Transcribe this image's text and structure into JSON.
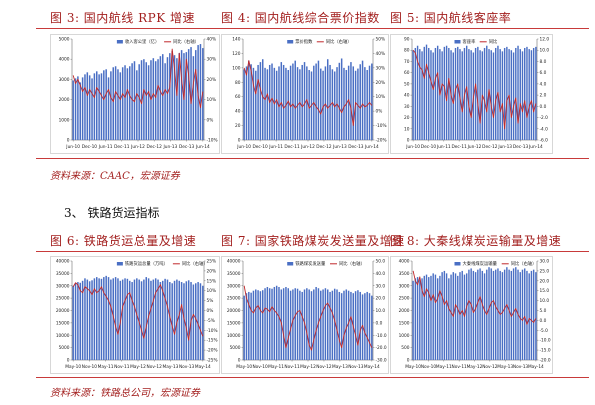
{
  "section1": {
    "fig_titles": [
      "图 3:  国内航线 RPK 增速",
      "图 4:  国内航线综合票价指数",
      "图 5:  国内航线客座率"
    ],
    "source": "资料来源：CAAC，宏源证券"
  },
  "section2": {
    "heading": "3、  铁路货运指标",
    "fig_titles": [
      "图 6:  铁路货运总量及增速",
      "图 7:  国家铁路煤炭发送量及增速",
      "图 8:  大秦线煤炭运输量及增速"
    ],
    "source": "资料来源：铁路总公司，宏源证券"
  },
  "colors": {
    "bar": "#4a6fc4",
    "line": "#c0282a",
    "title": "#a3201f",
    "rule": "#c83a3a"
  },
  "chart_data": [
    {
      "id": "fig3",
      "type": "bar",
      "x_tick_labels": [
        "Jun-10",
        "Dec-10",
        "Jun-11",
        "Dec-11",
        "Jun-12",
        "Dec-12",
        "Jun-13",
        "Dec-13",
        "Jun-14"
      ],
      "y_left": {
        "ylim": [
          0,
          5000
        ],
        "ticks": [
          "0",
          "1000",
          "2000",
          "3000",
          "4000",
          "5000"
        ]
      },
      "y_right": {
        "ylim": [
          -10,
          40
        ],
        "ticks": [
          "-10%",
          "0%",
          "10%",
          "20%",
          "30%",
          "40%"
        ]
      },
      "series": [
        {
          "name": "收入客公里（亿）",
          "kind": "bar",
          "axis": "left",
          "values": [
            2950,
            3050,
            3150,
            2850,
            3100,
            3250,
            3350,
            3200,
            3050,
            3300,
            3400,
            3250,
            3300,
            3450,
            3500,
            3100,
            3400,
            3600,
            3650,
            3500,
            3350,
            3600,
            3700,
            3550,
            3650,
            3800,
            3900,
            3450,
            3750,
            3950,
            4000,
            3850,
            3700,
            3950,
            4050,
            3900,
            4000,
            4150,
            4250,
            3800,
            4100,
            4300,
            4400,
            4200,
            4050,
            4300,
            4450,
            4300,
            4350,
            4500,
            4600,
            4150,
            4450,
            4700,
            4750,
            4550
          ]
        },
        {
          "name": "同比（右轴）",
          "kind": "line",
          "axis": "right",
          "values": [
            22,
            18,
            20,
            17,
            14,
            16,
            12,
            15,
            13,
            11,
            16,
            14,
            12,
            10,
            13,
            15,
            11,
            9,
            14,
            12,
            10,
            13,
            11,
            15,
            12,
            10,
            9,
            13,
            11,
            8,
            15,
            12,
            14,
            10,
            13,
            11,
            17,
            14,
            12,
            15,
            13,
            16,
            35,
            25,
            12,
            33,
            20,
            10,
            30,
            22,
            8,
            18,
            25,
            12,
            6,
            14
          ]
        }
      ]
    },
    {
      "id": "fig4",
      "type": "bar",
      "x_tick_labels": [
        "Jun-10",
        "Dec-10",
        "Jun-11",
        "Dec-11",
        "Jun-12",
        "Dec-12",
        "Jun-13",
        "Dec-13",
        "Jun-14"
      ],
      "y_left": {
        "ylim": [
          0,
          140
        ],
        "ticks": [
          "0",
          "20",
          "40",
          "60",
          "80",
          "100",
          "120",
          "140"
        ]
      },
      "y_right": {
        "ylim": [
          -20,
          50
        ],
        "ticks": [
          "-20%",
          "-10%",
          "0%",
          "10%",
          "20%",
          "30%",
          "40%",
          "50%"
        ]
      },
      "series": [
        {
          "name": "票价指数",
          "kind": "bar",
          "axis": "left",
          "values": [
            98,
            102,
            110,
            105,
            100,
            96,
            104,
            108,
            112,
            100,
            98,
            104,
            106,
            100,
            96,
            102,
            108,
            104,
            100,
            97,
            103,
            106,
            110,
            101,
            98,
            104,
            108,
            102,
            97,
            95,
            103,
            106,
            110,
            99,
            96,
            102,
            112,
            104,
            98,
            95,
            101,
            107,
            113,
            100,
            97,
            103,
            108,
            102,
            96,
            99,
            105,
            110,
            101,
            97,
            103,
            106
          ]
        },
        {
          "name": "同比（右轴）",
          "kind": "line",
          "axis": "right",
          "values": [
            30,
            25,
            35,
            28,
            18,
            12,
            22,
            15,
            10,
            8,
            12,
            6,
            9,
            5,
            8,
            3,
            6,
            2,
            4,
            7,
            3,
            5,
            2,
            4,
            6,
            3,
            5,
            8,
            2,
            4,
            6,
            3,
            1,
            -2,
            3,
            5,
            2,
            4,
            6,
            3,
            5,
            2,
            -1,
            3,
            5,
            8,
            2,
            -10,
            6,
            4,
            2,
            5,
            3,
            4,
            6,
            4
          ]
        }
      ]
    },
    {
      "id": "fig5",
      "type": "bar",
      "x_tick_labels": [
        "Jun-10",
        "Dec-10",
        "Jun-11",
        "Dec-11",
        "Jun-12",
        "Dec-12",
        "Jun-13",
        "Dec-13",
        "Jun-14"
      ],
      "y_left": {
        "ylim": [
          0,
          90
        ],
        "ticks": [
          "0",
          "10",
          "20",
          "30",
          "40",
          "50",
          "60",
          "70",
          "80",
          "90"
        ]
      },
      "y_right": {
        "ylim": [
          -6,
          12
        ],
        "ticks": [
          "-6.0",
          "-4.0",
          "-2.0",
          "0.0",
          "2.0",
          "4.0",
          "6.0",
          "8.0",
          "10.0",
          "12.0"
        ]
      },
      "series": [
        {
          "name": "客座率",
          "kind": "bar",
          "axis": "left",
          "values": [
            80,
            82,
            84,
            81,
            79,
            83,
            85,
            82,
            80,
            78,
            82,
            84,
            81,
            79,
            83,
            84,
            82,
            80,
            78,
            82,
            83,
            81,
            79,
            82,
            84,
            81,
            80,
            78,
            82,
            83,
            80,
            79,
            82,
            84,
            81,
            80,
            78,
            82,
            84,
            81,
            79,
            82,
            83,
            81,
            80,
            78,
            82,
            84,
            81,
            79,
            82,
            83,
            81,
            80,
            82,
            83
          ]
        },
        {
          "name": "同比",
          "kind": "line",
          "axis": "right",
          "values": [
            10,
            9.5,
            8,
            7,
            6.5,
            5,
            7.5,
            6,
            4.5,
            3,
            5,
            6,
            2,
            4,
            3.5,
            1,
            5,
            2,
            0.5,
            3,
            4,
            1.5,
            -1,
            2,
            3.5,
            0,
            -2,
            1.5,
            4,
            0.5,
            -3,
            2,
            1,
            -1,
            3,
            0,
            -2,
            1,
            2.5,
            -1,
            0.5,
            -4,
            1,
            2,
            -2,
            0,
            1.5,
            -3,
            0.5,
            -1,
            1,
            -2,
            0,
            1,
            -1,
            0.5
          ]
        }
      ]
    },
    {
      "id": "fig6",
      "type": "bar",
      "x_tick_labels": [
        "May-10",
        "Nov-10",
        "May-11",
        "Nov-11",
        "May-12",
        "Nov-12",
        "May-13",
        "Nov-13",
        "May-14"
      ],
      "y_left": {
        "ylim": [
          0,
          40000
        ],
        "ticks": [
          "0",
          "5000",
          "10000",
          "15000",
          "20000",
          "25000",
          "30000",
          "35000",
          "40000"
        ]
      },
      "y_right": {
        "ylim": [
          -25,
          25
        ],
        "ticks": [
          "-25%",
          "-20%",
          "-15%",
          "-10%",
          "-5%",
          "0%",
          "5%",
          "10%",
          "15%",
          "20%",
          "25%"
        ]
      },
      "series": [
        {
          "name": "铁路货运总量（万吨）",
          "kind": "bar",
          "axis": "left",
          "values": [
            30000,
            31000,
            31500,
            31200,
            32000,
            33000,
            32500,
            31800,
            32200,
            33000,
            33500,
            33000,
            32800,
            33500,
            34000,
            33500,
            32500,
            33000,
            33500,
            33000,
            32000,
            32500,
            33000,
            32800,
            32000,
            31500,
            32500,
            33000,
            32500,
            31800,
            32500,
            33500,
            33000,
            32000,
            32500,
            33000,
            32500,
            31500,
            32000,
            32800,
            32500,
            31500,
            31000,
            32000,
            32500,
            32000,
            31500,
            31000,
            31800,
            32200,
            31500,
            30500,
            31000,
            31500,
            31000,
            30000
          ]
        },
        {
          "name": "同比（右轴）",
          "kind": "line",
          "axis": "right",
          "values": [
            12,
            14,
            13,
            10,
            9,
            12,
            11,
            10,
            8,
            11,
            9,
            10,
            12,
            9,
            7,
            5,
            2,
            -3,
            -8,
            -12,
            -6,
            2,
            5,
            8,
            9,
            5,
            2,
            -2,
            -6,
            -10,
            -14,
            -8,
            -3,
            1,
            5,
            9,
            11,
            13,
            10,
            6,
            2,
            -3,
            -8,
            -12,
            -6,
            -2,
            3,
            -4,
            -9,
            -15,
            -5,
            -2,
            -4,
            -7,
            -10,
            -13
          ]
        }
      ]
    },
    {
      "id": "fig7",
      "type": "bar",
      "x_tick_labels": [
        "May-10",
        "Nov-10",
        "May-11",
        "Nov-11",
        "May-12",
        "Nov-12",
        "May-13",
        "Nov-13",
        "May-14"
      ],
      "y_left": {
        "ylim": [
          0,
          40000
        ],
        "ticks": [
          "0",
          "5000",
          "10000",
          "15000",
          "20000",
          "25000",
          "30000",
          "35000",
          "40000"
        ]
      },
      "y_right": {
        "ylim": [
          -30,
          50
        ],
        "ticks": [
          "-30.0",
          "-20.0",
          "-10.0",
          "0.0",
          "10.0",
          "20.0",
          "30.0",
          "40.0",
          "50.0"
        ]
      },
      "series": [
        {
          "name": "铁路煤炭发送量",
          "kind": "bar",
          "axis": "left",
          "values": [
            26000,
            27000,
            27500,
            27200,
            28000,
            28500,
            28200,
            27800,
            28200,
            29000,
            29500,
            29000,
            28800,
            29500,
            30000,
            29500,
            28500,
            29000,
            29500,
            29000,
            28000,
            28500,
            29000,
            28800,
            28000,
            27500,
            28500,
            29000,
            28500,
            27800,
            28500,
            29500,
            29000,
            28000,
            28500,
            29000,
            28500,
            27500,
            28000,
            28800,
            28500,
            27500,
            27000,
            28000,
            28500,
            28000,
            27500,
            27000,
            27800,
            28200,
            27500,
            26500,
            27000,
            27500,
            27000,
            26000
          ]
        },
        {
          "name": "同比（右轴）",
          "kind": "line",
          "axis": "right",
          "values": [
            30,
            20,
            15,
            10,
            8,
            12,
            14,
            10,
            8,
            12,
            11,
            9,
            13,
            10,
            8,
            5,
            0,
            -10,
            -20,
            -12,
            -5,
            2,
            6,
            9,
            10,
            5,
            0,
            -8,
            -18,
            -22,
            -14,
            -6,
            0,
            5,
            10,
            14,
            16,
            12,
            8,
            2,
            -6,
            -14,
            -20,
            -10,
            -4,
            0,
            5,
            -3,
            -10,
            -18,
            -6,
            -2,
            -8,
            -12,
            -16,
            -20
          ]
        }
      ]
    },
    {
      "id": "fig8",
      "type": "bar",
      "x_tick_labels": [
        "May-10",
        "Nov-10",
        "May-11",
        "Nov-11",
        "May-12",
        "Nov-12",
        "May-13",
        "Nov-13",
        "May-14"
      ],
      "y_left": {
        "ylim": [
          0,
          4000
        ],
        "ticks": [
          "0",
          "500",
          "1000",
          "1500",
          "2000",
          "2500",
          "3000",
          "3500",
          "4000"
        ]
      },
      "y_right": {
        "ylim": [
          -20,
          30
        ],
        "ticks": [
          "-20.0",
          "-15.0",
          "-10.0",
          "-5.0",
          "0.0",
          "5.0",
          "10.0",
          "15.0",
          "20.0",
          "25.0",
          "30.0"
        ]
      },
      "series": [
        {
          "name": "大秦线煤炭运输量",
          "kind": "bar",
          "axis": "left",
          "values": [
            3200,
            3300,
            3350,
            3250,
            3300,
            3400,
            3450,
            3350,
            3400,
            3500,
            3450,
            3300,
            3400,
            3550,
            3600,
            3500,
            3300,
            3450,
            3550,
            3500,
            3400,
            3550,
            3600,
            3450,
            3500,
            3650,
            3700,
            3600,
            3550,
            3650,
            3700,
            3600,
            3500,
            3650,
            3750,
            3700,
            3600,
            3650,
            3700,
            3600,
            3550,
            3650,
            3750,
            3650,
            3600,
            3700,
            3750,
            3650,
            3550,
            3650,
            3700,
            3600,
            3500,
            3600,
            3650,
            3550
          ]
        },
        {
          "name": "同比（右轴）",
          "kind": "line",
          "axis": "right",
          "values": [
            25,
            20,
            18,
            22,
            15,
            12,
            16,
            14,
            10,
            13,
            9,
            11,
            15,
            12,
            8,
            10,
            6,
            4,
            2,
            8,
            6,
            3,
            5,
            2,
            7,
            10,
            8,
            4,
            6,
            9,
            12,
            8,
            5,
            3,
            6,
            9,
            10,
            7,
            5,
            3,
            4,
            6,
            8,
            5,
            2,
            4,
            6,
            3,
            1,
            0,
            2,
            -2,
            1,
            0,
            -1,
            1
          ]
        }
      ]
    }
  ]
}
